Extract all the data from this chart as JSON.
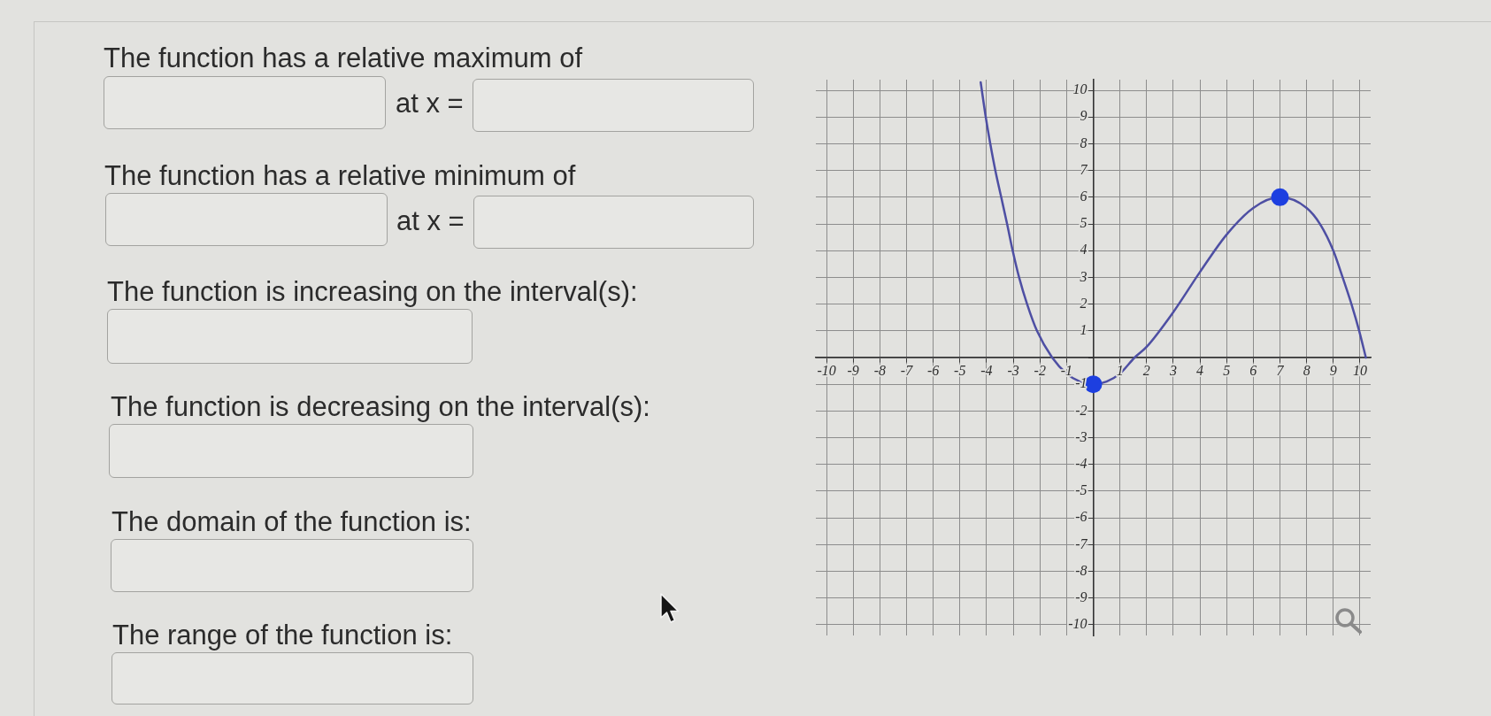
{
  "chart_data": {
    "type": "line",
    "annotations": [
      "The function has a relative maximum of",
      "at x =",
      "The function has a relative minimum of",
      "at x =",
      "The function is increasing on the interval(s):",
      "The function is decreasing on the interval(s):",
      "The domain of the function is:",
      "The range of the function is:"
    ],
    "xlim": [
      -10.4,
      10.4
    ],
    "ylim": [
      -10.4,
      10.4
    ],
    "xticks": [
      -10,
      -9,
      -8,
      -7,
      -6,
      -5,
      -4,
      -3,
      -2,
      -1,
      {
        "value": 0,
        "label": null
      },
      1,
      2,
      3,
      4,
      5,
      6,
      7,
      8,
      9,
      10
    ],
    "yticks": [
      -10,
      -9,
      -8,
      -7,
      -6,
      -5,
      -4,
      -3,
      -2,
      -1,
      {
        "value": 0,
        "label": null
      },
      1,
      2,
      3,
      4,
      5,
      6,
      7,
      8,
      9,
      10
    ],
    "grid": true,
    "series": [
      {
        "color": "#4e4fa3",
        "x": [
          -4.22,
          -4.03,
          -3.86,
          -3.67,
          -3.45,
          -3.23,
          -3.02,
          -2.78,
          -2.48,
          -2.11,
          -1.54,
          -1,
          -0.5,
          0,
          0.5,
          1,
          1.55,
          2,
          3,
          4,
          5,
          6,
          7,
          8,
          8.5,
          9,
          9.35,
          9.68,
          9.97,
          10.22
        ],
        "values": [
          10.3,
          9,
          8,
          7,
          6,
          5,
          4,
          3,
          2,
          1,
          0,
          -0.6,
          -0.9,
          -1,
          -0.9,
          -0.6,
          0,
          0.4,
          1.7,
          3.2,
          4.6,
          5.6,
          6,
          5.6,
          5,
          4,
          3,
          2,
          1,
          0
        ]
      },
      {
        "type": "scatter",
        "color": "#1d3fe0",
        "marker": "circle",
        "x": [
          0,
          7
        ],
        "values": [
          -1,
          6
        ]
      }
    ]
  }
}
